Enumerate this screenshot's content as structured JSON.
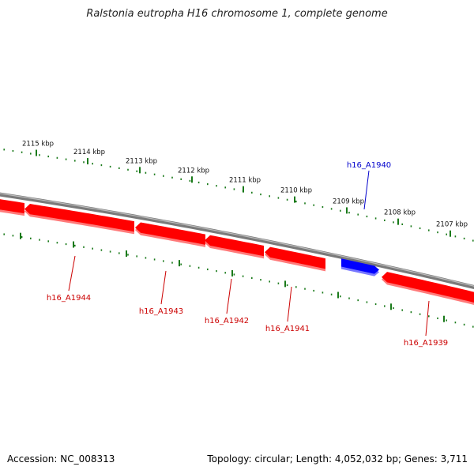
{
  "title": "Ralstonia eutropha H16 chromosome 1, complete genome",
  "footer": {
    "accession": "Accession: NC_008313",
    "summary": "Topology: circular; Length: 4,052,032 bp; Genes: 3,711"
  },
  "colors": {
    "backbone": "#7a7a7a",
    "reverse_gene": "#ff0000",
    "forward_gene": "#0000ff",
    "tick": "#1a7a1a",
    "reverse_label": "#cc0000",
    "forward_label": "#0000cc"
  },
  "ticks": [
    "2115 kbp",
    "2114 kbp",
    "2113 kbp",
    "2112 kbp",
    "2111 kbp",
    "2110 kbp",
    "2109 kbp",
    "2108 kbp",
    "2107 kbp"
  ],
  "genes": [
    {
      "id": "g1939",
      "label": "h16_A1939",
      "strand": "reverse"
    },
    {
      "id": "g1940",
      "label": "h16_A1940",
      "strand": "forward"
    },
    {
      "id": "g1941",
      "label": "h16_A1941",
      "strand": "reverse"
    },
    {
      "id": "g1942",
      "label": "h16_A1942",
      "strand": "reverse"
    },
    {
      "id": "g1943",
      "label": "h16_A1943",
      "strand": "reverse"
    },
    {
      "id": "g1944",
      "label": "h16_A1944",
      "strand": "reverse"
    },
    {
      "id": "g1945",
      "label": "",
      "strand": "reverse"
    }
  ]
}
